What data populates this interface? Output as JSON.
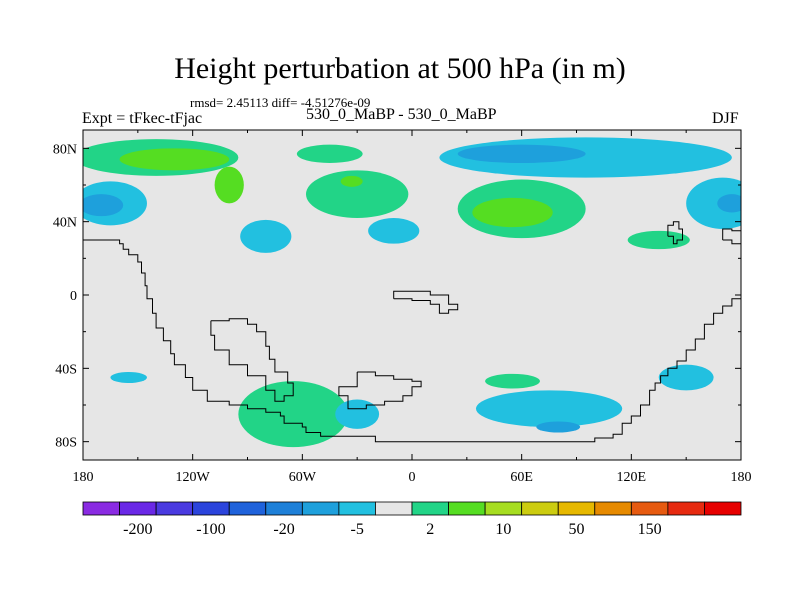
{
  "header": {
    "title": "Height perturbation at 500 hPa (in m)",
    "stats": "rmsd= 2.45113 diff= -4.51276e-09",
    "left_label": "Expt = tFkec-tFjac",
    "center_label": "530_0_MaBP - 530_0_MaBP",
    "right_label": "DJF"
  },
  "chart_data": {
    "type": "heatmap",
    "title": "Height perturbation at 500 hPa (in m)",
    "xlabel": "",
    "ylabel": "",
    "xlim": [
      -180,
      180
    ],
    "ylim": [
      -90,
      90
    ],
    "x_ticks": [
      {
        "value": -180,
        "label": "180"
      },
      {
        "value": -120,
        "label": "120W"
      },
      {
        "value": -60,
        "label": "60W"
      },
      {
        "value": 0,
        "label": "0"
      },
      {
        "value": 60,
        "label": "60E"
      },
      {
        "value": 120,
        "label": "120E"
      },
      {
        "value": 180,
        "label": "180"
      }
    ],
    "y_ticks": [
      {
        "value": 80,
        "label": "80N"
      },
      {
        "value": 40,
        "label": "40N"
      },
      {
        "value": 0,
        "label": "0"
      },
      {
        "value": -40,
        "label": "40S"
      },
      {
        "value": -80,
        "label": "80S"
      }
    ],
    "background_color": "#e6e6e6",
    "regions": [
      {
        "name": "arctic-west",
        "level": 5,
        "color": "#22d487",
        "lon": -140,
        "lat": 75,
        "rlon": 45,
        "rlat": 10
      },
      {
        "name": "arctic-west-core",
        "level": 10,
        "color": "#55dd22",
        "lon": -130,
        "lat": 74,
        "rlon": 30,
        "rlat": 6
      },
      {
        "name": "canada-tongue",
        "level": 10,
        "color": "#55dd22",
        "lon": -100,
        "lat": 60,
        "rlon": 8,
        "rlat": 10
      },
      {
        "name": "n-pacific",
        "level": -5,
        "color": "#22c0e0",
        "lon": -165,
        "lat": 50,
        "rlon": 20,
        "rlat": 12
      },
      {
        "name": "n-pacific-core",
        "level": -10,
        "color": "#1ea0dc",
        "lon": -170,
        "lat": 49,
        "rlon": 12,
        "rlat": 6
      },
      {
        "name": "n-america-west",
        "level": -5,
        "color": "#22c0e0",
        "lon": -80,
        "lat": 32,
        "rlon": 14,
        "rlat": 9
      },
      {
        "name": "arctic-center",
        "level": 5,
        "color": "#22d487",
        "lon": -45,
        "lat": 77,
        "rlon": 18,
        "rlat": 5
      },
      {
        "name": "n-atlantic",
        "level": 5,
        "color": "#22d487",
        "lon": -30,
        "lat": 55,
        "rlon": 28,
        "rlat": 13
      },
      {
        "name": "n-atlantic-core",
        "level": 10,
        "color": "#55dd22",
        "lon": -33,
        "lat": 62,
        "rlon": 6,
        "rlat": 3
      },
      {
        "name": "europe",
        "level": -5,
        "color": "#22c0e0",
        "lon": -10,
        "lat": 35,
        "rlon": 14,
        "rlat": 7
      },
      {
        "name": "arctic-east",
        "level": -5,
        "color": "#22c0e0",
        "lon": 95,
        "lat": 75,
        "rlon": 80,
        "rlat": 11
      },
      {
        "name": "arctic-east-core",
        "level": -10,
        "color": "#1ea0dc",
        "lon": 60,
        "lat": 77,
        "rlon": 35,
        "rlat": 5
      },
      {
        "name": "siberia",
        "level": 5,
        "color": "#22d487",
        "lon": 60,
        "lat": 47,
        "rlon": 35,
        "rlat": 16
      },
      {
        "name": "siberia-core",
        "level": 10,
        "color": "#55dd22",
        "lon": 55,
        "lat": 45,
        "rlon": 22,
        "rlat": 8
      },
      {
        "name": "n-pacific-east",
        "level": -5,
        "color": "#22c0e0",
        "lon": 170,
        "lat": 50,
        "rlon": 20,
        "rlat": 14
      },
      {
        "name": "n-pacific-east-core",
        "level": -10,
        "color": "#1ea0dc",
        "lon": 175,
        "lat": 50,
        "rlon": 8,
        "rlat": 5
      },
      {
        "name": "japan",
        "level": 5,
        "color": "#22d487",
        "lon": 135,
        "lat": 30,
        "rlon": 17,
        "rlat": 5
      },
      {
        "name": "s-pacific-west",
        "level": -5,
        "color": "#22c0e0",
        "lon": -155,
        "lat": -45,
        "rlon": 10,
        "rlat": 3
      },
      {
        "name": "s-america-south",
        "level": 5,
        "color": "#22d487",
        "lon": -65,
        "lat": -65,
        "rlon": 30,
        "rlat": 18
      },
      {
        "name": "s-atlantic",
        "level": -5,
        "color": "#22c0e0",
        "lon": -30,
        "lat": -65,
        "rlon": 12,
        "rlat": 8
      },
      {
        "name": "s-indian",
        "level": -5,
        "color": "#22c0e0",
        "lon": 75,
        "lat": -62,
        "rlon": 40,
        "rlat": 10
      },
      {
        "name": "s-indian-core",
        "level": -10,
        "color": "#1ea0dc",
        "lon": 80,
        "lat": -72,
        "rlon": 12,
        "rlat": 3
      },
      {
        "name": "south-africa",
        "level": 5,
        "color": "#22d487",
        "lon": 55,
        "lat": -47,
        "rlon": 15,
        "rlat": 4
      },
      {
        "name": "australia-south",
        "level": -5,
        "color": "#22c0e0",
        "lon": 150,
        "lat": -45,
        "rlon": 15,
        "rlat": 7
      }
    ],
    "coastlines": [
      [
        [
          -180,
          30
        ],
        [
          -168,
          30
        ],
        [
          -160,
          28
        ],
        [
          -158,
          25
        ],
        [
          -155,
          22
        ],
        [
          -150,
          18
        ],
        [
          -148,
          12
        ],
        [
          -146,
          5
        ],
        [
          -145,
          -2
        ],
        [
          -142,
          -10
        ],
        [
          -140,
          -18
        ],
        [
          -136,
          -25
        ],
        [
          -132,
          -32
        ],
        [
          -130,
          -38
        ],
        [
          -124,
          -45
        ],
        [
          -120,
          -52
        ],
        [
          -112,
          -58
        ],
        [
          -100,
          -60
        ],
        [
          -90,
          -62
        ],
        [
          -80,
          -64
        ],
        [
          -72,
          -66
        ],
        [
          -70,
          -70
        ],
        [
          -60,
          -72
        ],
        [
          -58,
          -75
        ],
        [
          -50,
          -77
        ],
        [
          -40,
          -77
        ],
        [
          -30,
          -77
        ],
        [
          -20,
          -80
        ],
        [
          -10,
          -80
        ],
        [
          0,
          -80
        ],
        [
          20,
          -80
        ],
        [
          40,
          -80
        ],
        [
          60,
          -80
        ],
        [
          80,
          -80
        ],
        [
          100,
          -78
        ],
        [
          110,
          -76
        ],
        [
          115,
          -70
        ],
        [
          120,
          -66
        ],
        [
          125,
          -60
        ],
        [
          130,
          -52
        ],
        [
          133,
          -48
        ],
        [
          136,
          -44
        ],
        [
          140,
          -40
        ],
        [
          145,
          -36
        ],
        [
          150,
          -30
        ],
        [
          155,
          -24
        ],
        [
          160,
          -16
        ],
        [
          165,
          -10
        ],
        [
          170,
          -6
        ],
        [
          175,
          -2
        ],
        [
          180,
          0
        ]
      ],
      [
        [
          -110,
          -14
        ],
        [
          -100,
          -13
        ],
        [
          -90,
          -16
        ],
        [
          -85,
          -20
        ],
        [
          -80,
          -28
        ],
        [
          -78,
          -35
        ],
        [
          -75,
          -42
        ],
        [
          -68,
          -48
        ],
        [
          -65,
          -55
        ],
        [
          -70,
          -58
        ],
        [
          -75,
          -52
        ],
        [
          -80,
          -44
        ],
        [
          -90,
          -38
        ],
        [
          -100,
          -30
        ],
        [
          -108,
          -22
        ],
        [
          -110,
          -14
        ]
      ],
      [
        [
          -30,
          -42
        ],
        [
          -20,
          -44
        ],
        [
          -10,
          -46
        ],
        [
          0,
          -47
        ],
        [
          5,
          -50
        ],
        [
          0,
          -55
        ],
        [
          -5,
          -58
        ],
        [
          -15,
          -60
        ],
        [
          -25,
          -62
        ],
        [
          -35,
          -55
        ],
        [
          -40,
          -50
        ],
        [
          -30,
          -42
        ]
      ],
      [
        [
          -10,
          -2
        ],
        [
          0,
          -3
        ],
        [
          10,
          -5
        ],
        [
          15,
          -10
        ],
        [
          20,
          -8
        ],
        [
          25,
          -5
        ],
        [
          20,
          0
        ],
        [
          10,
          2
        ],
        [
          0,
          2
        ],
        [
          -10,
          -2
        ]
      ],
      [
        [
          140,
          32
        ],
        [
          143,
          28
        ],
        [
          145,
          30
        ],
        [
          148,
          36
        ],
        [
          146,
          40
        ],
        [
          143,
          38
        ],
        [
          140,
          32
        ]
      ],
      [
        [
          170,
          30
        ],
        [
          175,
          28
        ],
        [
          180,
          28
        ],
        [
          180,
          35
        ],
        [
          175,
          36
        ],
        [
          170,
          30
        ]
      ]
    ],
    "colorbar": {
      "colors": [
        "#8a2be2",
        "#6a28e6",
        "#4a3ae0",
        "#2b44dc",
        "#1f62db",
        "#1e80d8",
        "#1ea0dc",
        "#22c0e0",
        "#e6e6e6",
        "#22d487",
        "#55dd22",
        "#a6dd20",
        "#cccc10",
        "#e6b800",
        "#e68a00",
        "#e65a10",
        "#e62a10",
        "#e60000"
      ],
      "tick_labels": [
        "-200",
        "-100",
        "-20",
        "-5",
        "2",
        "10",
        "50",
        "150"
      ]
    }
  }
}
